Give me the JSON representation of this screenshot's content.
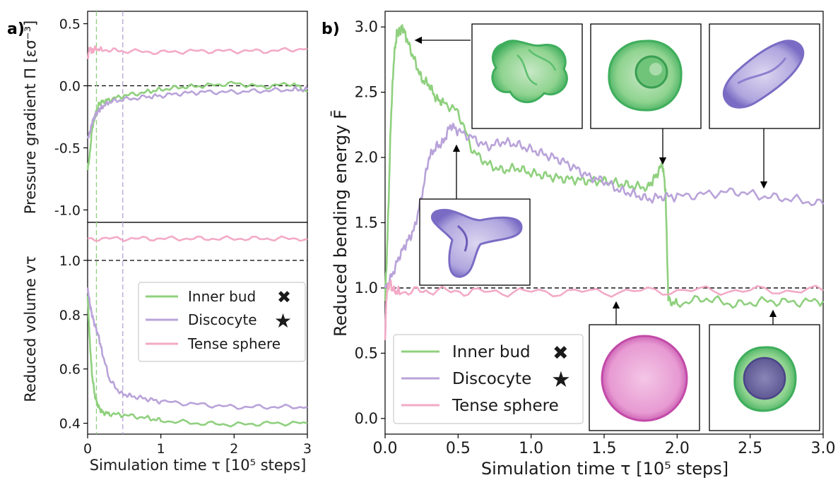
{
  "colors": {
    "inner_bud": "#8fd07e",
    "discocyte": "#b9a3d9",
    "tense_sphere": "#f3aac6"
  },
  "chart_data": [
    {
      "panel": "a)",
      "type": "line",
      "subplot": "pressure",
      "ylabel": "Pressure gradient Π [εσ⁻³]",
      "ylim": [
        -1.1,
        0.6
      ],
      "yticks": [
        "0.5",
        "0.0",
        "-0.5",
        "-1.0"
      ],
      "ytick_values": [
        0.5,
        0.0,
        -0.5,
        -1.0
      ],
      "xlim": [
        0,
        3
      ],
      "reference_line": 0.0,
      "vlines": [
        0.12,
        0.48
      ],
      "series": [
        {
          "name": "Inner bud",
          "x": [
            0,
            0.03,
            0.06,
            0.1,
            0.15,
            0.2,
            0.3,
            0.5,
            0.8,
            1.0,
            1.3,
            1.6,
            2.0,
            2.4,
            2.8,
            3.0
          ],
          "y": [
            -0.68,
            -0.55,
            -0.35,
            -0.25,
            -0.15,
            -0.13,
            -0.11,
            -0.08,
            -0.05,
            -0.03,
            -0.01,
            0.0,
            0.02,
            -0.01,
            0.02,
            -0.05
          ]
        },
        {
          "name": "Discocyte",
          "x": [
            0,
            0.03,
            0.06,
            0.1,
            0.15,
            0.2,
            0.3,
            0.5,
            0.8,
            1.0,
            1.3,
            1.6,
            2.0,
            2.4,
            2.8,
            3.0
          ],
          "y": [
            -0.42,
            -0.38,
            -0.3,
            -0.24,
            -0.2,
            -0.17,
            -0.13,
            -0.11,
            -0.09,
            -0.08,
            -0.06,
            -0.05,
            -0.05,
            -0.04,
            -0.03,
            -0.03
          ]
        },
        {
          "name": "Tense sphere",
          "x": [
            0,
            0.03,
            0.06,
            0.1,
            0.2,
            0.5,
            1.0,
            1.5,
            2.0,
            2.5,
            3.0
          ],
          "y": [
            0.22,
            0.31,
            0.27,
            0.3,
            0.29,
            0.28,
            0.27,
            0.28,
            0.28,
            0.28,
            0.3
          ]
        }
      ]
    },
    {
      "panel": "a)",
      "type": "line",
      "subplot": "volume",
      "ylabel": "Reduced volume vτ",
      "xlabel": "Simulation time τ [10⁵ steps]",
      "ylim": [
        0.36,
        1.14
      ],
      "yticks": [
        "1.0",
        "0.8",
        "0.6",
        "0.4"
      ],
      "ytick_values": [
        1.0,
        0.8,
        0.6,
        0.4
      ],
      "xlim": [
        0,
        3
      ],
      "xticks": [
        "0",
        "1",
        "2",
        "3"
      ],
      "xtick_values": [
        0,
        1,
        2,
        3
      ],
      "reference_line": 1.0,
      "vlines": [
        0.12,
        0.48
      ],
      "legend": {
        "placement": "right",
        "entries": [
          {
            "label": "Inner bud",
            "marker": "✖"
          },
          {
            "label": "Discocyte",
            "marker": "★"
          },
          {
            "label": "Tense sphere",
            "marker": ""
          }
        ]
      },
      "series": [
        {
          "name": "Inner bud",
          "x": [
            0,
            0.03,
            0.06,
            0.1,
            0.15,
            0.2,
            0.3,
            0.5,
            0.8,
            1.0,
            1.5,
            2.0,
            2.5,
            3.0
          ],
          "y": [
            0.87,
            0.7,
            0.58,
            0.5,
            0.46,
            0.44,
            0.435,
            0.43,
            0.42,
            0.41,
            0.4,
            0.395,
            0.4,
            0.4
          ]
        },
        {
          "name": "Discocyte",
          "x": [
            0,
            0.03,
            0.06,
            0.1,
            0.15,
            0.2,
            0.3,
            0.45,
            0.6,
            0.8,
            1.0,
            1.5,
            2.0,
            2.5,
            3.0
          ],
          "y": [
            0.9,
            0.84,
            0.8,
            0.76,
            0.72,
            0.66,
            0.56,
            0.51,
            0.5,
            0.49,
            0.48,
            0.47,
            0.46,
            0.46,
            0.46
          ]
        },
        {
          "name": "Tense sphere",
          "x": [
            0,
            0.5,
            1.0,
            1.5,
            2.0,
            2.5,
            3.0
          ],
          "y": [
            1.08,
            1.08,
            1.08,
            1.08,
            1.08,
            1.08,
            1.08
          ]
        }
      ]
    },
    {
      "panel": "b)",
      "type": "line",
      "ylabel": "Reduced bending energy F̄",
      "xlabel": "Simulation time τ [10⁵ steps]",
      "ylim": [
        -0.12,
        3.12
      ],
      "yticks": [
        "3.0",
        "2.5",
        "2.0",
        "1.5",
        "1.0",
        "0.5",
        "0.0"
      ],
      "ytick_values": [
        3.0,
        2.5,
        2.0,
        1.5,
        1.0,
        0.5,
        0.0
      ],
      "xlim": [
        0,
        3
      ],
      "xticks": [
        "0.0",
        "0.5",
        "1.0",
        "1.5",
        "2.0",
        "2.5",
        "3.0"
      ],
      "xtick_values": [
        0,
        0.5,
        1.0,
        1.5,
        2.0,
        2.5,
        3.0
      ],
      "reference_line": 1.0,
      "legend": {
        "placement": "lower-left",
        "entries": [
          {
            "label": "Inner bud",
            "marker": "✖"
          },
          {
            "label": "Discocyte",
            "marker": "★"
          },
          {
            "label": "Tense sphere",
            "marker": ""
          }
        ]
      },
      "series": [
        {
          "name": "Inner bud",
          "x": [
            0,
            0.02,
            0.04,
            0.06,
            0.08,
            0.1,
            0.12,
            0.15,
            0.2,
            0.25,
            0.3,
            0.35,
            0.4,
            0.5,
            0.6,
            0.7,
            0.8,
            0.9,
            1.0,
            1.1,
            1.2,
            1.3,
            1.4,
            1.5,
            1.6,
            1.7,
            1.8,
            1.85,
            1.9,
            1.92,
            1.94,
            2.0,
            2.2,
            2.4,
            2.6,
            2.8,
            3.0
          ],
          "y": [
            0.9,
            1.5,
            2.3,
            2.75,
            2.95,
            2.97,
            3.0,
            2.9,
            2.75,
            2.6,
            2.56,
            2.45,
            2.42,
            2.35,
            2.05,
            1.95,
            1.9,
            1.92,
            1.88,
            1.86,
            1.84,
            1.83,
            1.82,
            1.82,
            1.8,
            1.78,
            1.77,
            1.85,
            1.95,
            1.75,
            0.9,
            0.88,
            0.92,
            0.87,
            0.9,
            0.89,
            0.9
          ]
        },
        {
          "name": "Discocyte",
          "x": [
            0,
            0.05,
            0.1,
            0.15,
            0.2,
            0.25,
            0.3,
            0.35,
            0.4,
            0.45,
            0.5,
            0.6,
            0.7,
            0.8,
            0.9,
            1.0,
            1.1,
            1.2,
            1.3,
            1.4,
            1.5,
            1.6,
            1.7,
            1.8,
            1.9,
            2.0,
            2.2,
            2.4,
            2.6,
            2.8,
            3.0
          ],
          "y": [
            1.0,
            1.1,
            1.25,
            1.35,
            1.45,
            1.7,
            2.0,
            2.08,
            2.12,
            2.25,
            2.2,
            2.15,
            2.08,
            2.12,
            2.1,
            2.06,
            2.02,
            1.98,
            1.92,
            1.85,
            1.82,
            1.75,
            1.72,
            1.68,
            1.7,
            1.7,
            1.72,
            1.74,
            1.7,
            1.68,
            1.64
          ]
        },
        {
          "name": "Tense sphere",
          "x": [
            0,
            0.01,
            0.03,
            0.06,
            0.1,
            0.3,
            0.6,
            1.0,
            1.5,
            2.0,
            2.5,
            3.0
          ],
          "y": [
            0.6,
            0.95,
            1.04,
            0.98,
            0.97,
            0.98,
            0.97,
            0.97,
            0.97,
            0.98,
            0.98,
            0.98
          ]
        }
      ]
    }
  ]
}
